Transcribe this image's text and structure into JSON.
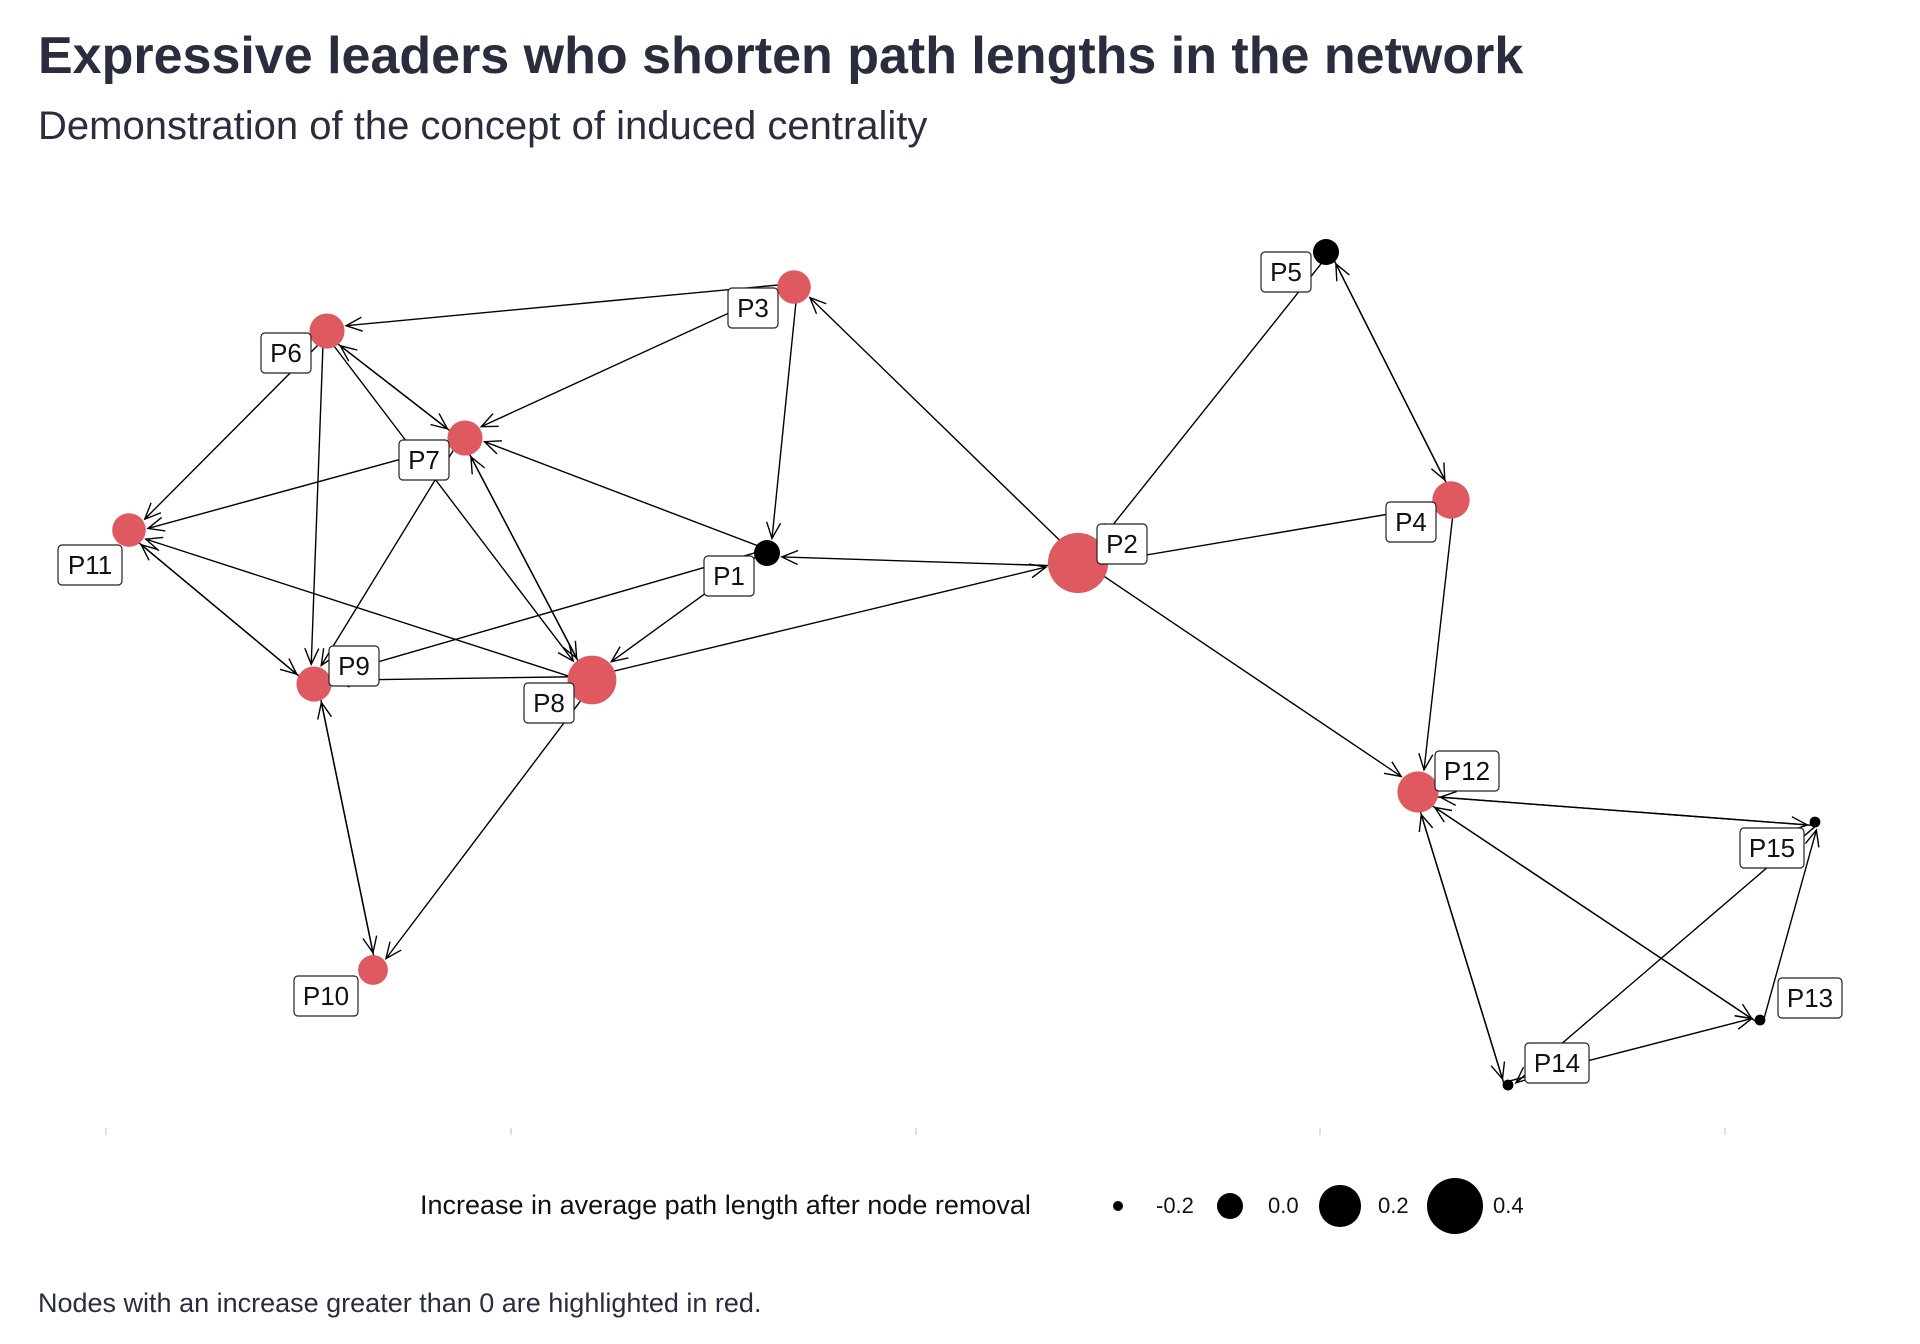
{
  "title": "Expressive leaders who shorten path lengths in the network",
  "subtitle": "Demonstration of the concept of induced centrality",
  "caption": "Nodes with an increase greater than 0 are highlighted in red.",
  "colors": {
    "highlight": "#df5960",
    "neutral": "#000000",
    "edge": "#000000",
    "text": "#2a2d3e"
  },
  "legend": {
    "title": "Increase in average path length after node removal",
    "items": [
      {
        "label": "-0.2",
        "value": -0.2
      },
      {
        "label": "0.0",
        "value": 0.0
      },
      {
        "label": "0.2",
        "value": 0.2
      },
      {
        "label": "0.4",
        "value": 0.4
      }
    ]
  },
  "nodes": [
    {
      "id": "P1",
      "label": "P1",
      "increase": 0.0,
      "highlighted": false
    },
    {
      "id": "P2",
      "label": "P2",
      "increase": 0.45,
      "highlighted": true
    },
    {
      "id": "P3",
      "label": "P3",
      "increase": 0.1,
      "highlighted": true
    },
    {
      "id": "P4",
      "label": "P4",
      "increase": 0.15,
      "highlighted": true
    },
    {
      "id": "P5",
      "label": "P5",
      "increase": 0.0,
      "highlighted": false
    },
    {
      "id": "P6",
      "label": "P6",
      "increase": 0.12,
      "highlighted": true
    },
    {
      "id": "P7",
      "label": "P7",
      "increase": 0.12,
      "highlighted": true
    },
    {
      "id": "P8",
      "label": "P8",
      "increase": 0.3,
      "highlighted": true
    },
    {
      "id": "P9",
      "label": "P9",
      "increase": 0.12,
      "highlighted": true
    },
    {
      "id": "P10",
      "label": "P10",
      "increase": 0.05,
      "highlighted": true
    },
    {
      "id": "P11",
      "label": "P11",
      "increase": 0.1,
      "highlighted": true
    },
    {
      "id": "P12",
      "label": "P12",
      "increase": 0.2,
      "highlighted": true
    },
    {
      "id": "P13",
      "label": "P13",
      "increase": -0.2,
      "highlighted": false
    },
    {
      "id": "P14",
      "label": "P14",
      "increase": -0.2,
      "highlighted": false
    },
    {
      "id": "P15",
      "label": "P15",
      "increase": -0.2,
      "highlighted": false
    }
  ],
  "edges": [
    [
      "P3",
      "P6"
    ],
    [
      "P3",
      "P7"
    ],
    [
      "P3",
      "P1"
    ],
    [
      "P2",
      "P3"
    ],
    [
      "P6",
      "P7"
    ],
    [
      "P7",
      "P6"
    ],
    [
      "P6",
      "P11"
    ],
    [
      "P6",
      "P9"
    ],
    [
      "P6",
      "P8"
    ],
    [
      "P7",
      "P11"
    ],
    [
      "P7",
      "P9"
    ],
    [
      "P7",
      "P8"
    ],
    [
      "P8",
      "P7"
    ],
    [
      "P1",
      "P7"
    ],
    [
      "P2",
      "P1"
    ],
    [
      "P1",
      "P8"
    ],
    [
      "P1",
      "P9"
    ],
    [
      "P11",
      "P9"
    ],
    [
      "P9",
      "P11"
    ],
    [
      "P8",
      "P11"
    ],
    [
      "P8",
      "P9"
    ],
    [
      "P9",
      "P10"
    ],
    [
      "P10",
      "P9"
    ],
    [
      "P8",
      "P10"
    ],
    [
      "P8",
      "P2"
    ],
    [
      "P5",
      "P2"
    ],
    [
      "P4",
      "P5"
    ],
    [
      "P5",
      "P4"
    ],
    [
      "P2",
      "P4"
    ],
    [
      "P4",
      "P12"
    ],
    [
      "P2",
      "P12"
    ],
    [
      "P12",
      "P15"
    ],
    [
      "P15",
      "P12"
    ],
    [
      "P12",
      "P13"
    ],
    [
      "P13",
      "P12"
    ],
    [
      "P12",
      "P14"
    ],
    [
      "P14",
      "P12"
    ],
    [
      "P14",
      "P13"
    ],
    [
      "P15",
      "P14"
    ],
    [
      "P13",
      "P15"
    ]
  ]
}
